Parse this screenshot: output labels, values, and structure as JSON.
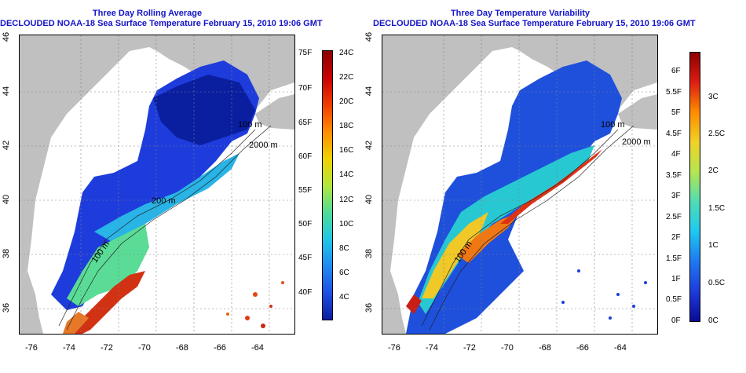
{
  "left_panel": {
    "title_line1": "Three Day Rolling Average",
    "title_line2": "DECLOUDED NOAA-18 Sea Surface Temperature February 15, 2010 19:06 GMT",
    "lon_ticks": [
      "-76",
      "-74",
      "-72",
      "-70",
      "-68",
      "-66",
      "-64"
    ],
    "lat_ticks": [
      "36",
      "38",
      "40",
      "42",
      "44",
      "46"
    ],
    "contour_labels": [
      "100 m",
      "2000 m",
      "200 m",
      "100 m"
    ],
    "colorbar_f": [
      "75F",
      "70F",
      "65F",
      "60F",
      "55F",
      "50F",
      "45F",
      "40F"
    ],
    "colorbar_c": [
      "24C",
      "22C",
      "20C",
      "18C",
      "16C",
      "14C",
      "12C",
      "10C",
      "8C",
      "6C",
      "4C"
    ]
  },
  "right_panel": {
    "title_line1": "Three Day Temperature Variability",
    "title_line2": "DECLOUDED NOAA-18 Sea Surface Temperature February 15, 2010 19:06 GMT",
    "lon_ticks": [
      "-76",
      "-74",
      "-72",
      "-70",
      "-68",
      "-66",
      "-64"
    ],
    "lat_ticks": [
      "36",
      "38",
      "40",
      "42",
      "44",
      "46"
    ],
    "contour_labels": [
      "100 m",
      "2000 m",
      "100 m"
    ],
    "colorbar_f": [
      "6F",
      "5.5F",
      "5F",
      "4.5F",
      "4F",
      "3.5F",
      "3F",
      "2.5F",
      "2F",
      "1.5F",
      "1F",
      "0.5F",
      "0F"
    ],
    "colorbar_c": [
      "3C",
      "2.5C",
      "2C",
      "1.5C",
      "1C",
      "0.5C",
      "0C"
    ]
  },
  "colors": {
    "land": "#c0c0c0",
    "title": "#1414c8",
    "no_data": "#ffffff"
  }
}
